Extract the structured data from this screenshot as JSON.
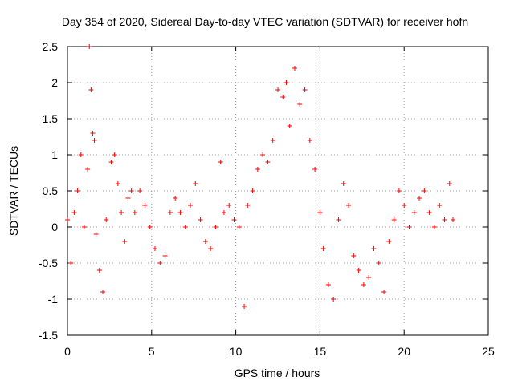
{
  "chart_data": {
    "type": "scatter",
    "title": "Day 354 of 2020, Sidereal Day-to-day VTEC variation (SDTVAR) for receiver hofn",
    "xlabel": "GPS time / hours",
    "ylabel": "SDTVAR / TECUs",
    "xlim": [
      0,
      25
    ],
    "ylim": [
      -1.5,
      2.5
    ],
    "xticks": [
      0,
      5,
      10,
      15,
      20,
      25
    ],
    "yticks": [
      -1.5,
      -1,
      -0.5,
      0,
      0.5,
      1,
      1.5,
      2,
      2.5
    ],
    "xtick_labels": [
      "0",
      "5",
      "10",
      "15",
      "20",
      "25"
    ],
    "ytick_labels": [
      "-1.5",
      "-1",
      "-0.5",
      "0",
      "0.5",
      "1",
      "1.5",
      "2",
      "2.5"
    ],
    "grid": true,
    "marker": "+",
    "color": "#ff0000",
    "series": [
      {
        "name": "SDTVAR",
        "x": [
          0.0,
          0.2,
          0.4,
          0.6,
          0.8,
          1.0,
          1.2,
          1.3,
          1.4,
          1.5,
          1.6,
          1.7,
          1.9,
          2.1,
          2.3,
          2.6,
          2.8,
          3.0,
          3.2,
          3.4,
          3.6,
          3.8,
          4.0,
          4.3,
          4.6,
          4.9,
          5.2,
          5.5,
          5.8,
          6.1,
          6.4,
          6.7,
          7.0,
          7.3,
          7.6,
          7.9,
          8.2,
          8.5,
          8.8,
          9.1,
          9.3,
          9.6,
          9.9,
          10.2,
          10.5,
          10.7,
          11.0,
          11.3,
          11.6,
          11.9,
          12.2,
          12.5,
          12.8,
          13.0,
          13.2,
          13.5,
          13.8,
          14.1,
          14.4,
          14.7,
          15.0,
          15.2,
          15.5,
          15.8,
          16.1,
          16.4,
          16.7,
          17.0,
          17.3,
          17.6,
          17.9,
          18.2,
          18.5,
          18.8,
          19.1,
          19.4,
          19.7,
          20.0,
          20.3,
          20.6,
          20.9,
          21.2,
          21.5,
          21.8,
          22.1,
          22.4,
          22.7,
          22.9
        ],
        "y": [
          0.1,
          -0.5,
          0.2,
          0.5,
          1.0,
          0.0,
          0.8,
          2.5,
          1.9,
          1.3,
          1.2,
          -0.1,
          -0.6,
          -0.9,
          0.1,
          0.9,
          1.0,
          0.6,
          0.2,
          -0.2,
          0.4,
          0.5,
          0.2,
          0.5,
          0.3,
          0.0,
          -0.3,
          -0.5,
          -0.4,
          0.2,
          0.4,
          0.2,
          0.0,
          0.3,
          0.6,
          0.1,
          -0.2,
          -0.3,
          0.0,
          0.9,
          0.2,
          0.3,
          0.1,
          0.0,
          -1.1,
          0.3,
          0.5,
          0.8,
          1.0,
          0.9,
          1.2,
          1.9,
          1.8,
          2.0,
          1.4,
          2.2,
          1.7,
          1.9,
          1.2,
          0.8,
          0.2,
          -0.3,
          -0.8,
          -1.0,
          0.1,
          0.6,
          0.3,
          -0.4,
          -0.6,
          -0.8,
          -0.7,
          -0.3,
          -0.5,
          -0.9,
          -0.2,
          0.1,
          0.5,
          0.3,
          0.0,
          0.2,
          0.4,
          0.5,
          0.2,
          0.0,
          0.3,
          0.1,
          0.6,
          0.1
        ]
      }
    ]
  }
}
